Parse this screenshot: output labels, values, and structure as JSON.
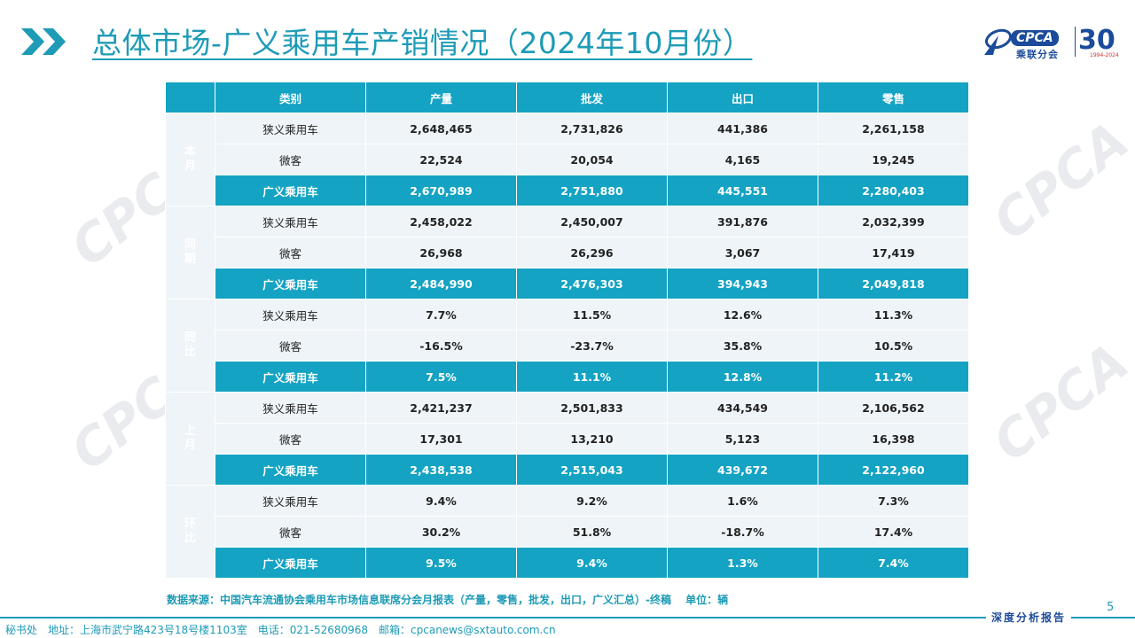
{
  "title": "总体市场-广义乘用车产销情况（2024年10月份）",
  "logo": {
    "brand": "CPCA",
    "name_cn": "乘联分会",
    "anniversary": "30",
    "years": "1994-2024"
  },
  "watermark": {
    "brand": "CPCA",
    "name_cn": "乘联分会"
  },
  "table": {
    "headers": [
      "类别",
      "产量",
      "批发",
      "出口",
      "零售"
    ],
    "groups": [
      {
        "label": "本月",
        "rows": [
          {
            "cat": "狭义乘用车",
            "values": [
              "2,648,465",
              "2,731,826",
              "441,386",
              "2,261,158"
            ]
          },
          {
            "cat": "微客",
            "values": [
              "22,524",
              "20,054",
              "4,165",
              "19,245"
            ]
          },
          {
            "cat": "广义乘用车",
            "values": [
              "2,670,989",
              "2,751,880",
              "445,551",
              "2,280,403"
            ]
          }
        ]
      },
      {
        "label": "同期",
        "rows": [
          {
            "cat": "狭义乘用车",
            "values": [
              "2,458,022",
              "2,450,007",
              "391,876",
              "2,032,399"
            ]
          },
          {
            "cat": "微客",
            "values": [
              "26,968",
              "26,296",
              "3,067",
              "17,419"
            ]
          },
          {
            "cat": "广义乘用车",
            "values": [
              "2,484,990",
              "2,476,303",
              "394,943",
              "2,049,818"
            ]
          }
        ]
      },
      {
        "label": "同比",
        "rows": [
          {
            "cat": "狭义乘用车",
            "values": [
              "7.7%",
              "11.5%",
              "12.6%",
              "11.3%"
            ]
          },
          {
            "cat": "微客",
            "values": [
              "-16.5%",
              "-23.7%",
              "35.8%",
              "10.5%"
            ]
          },
          {
            "cat": "广义乘用车",
            "values": [
              "7.5%",
              "11.1%",
              "12.8%",
              "11.2%"
            ]
          }
        ]
      },
      {
        "label": "上月",
        "rows": [
          {
            "cat": "狭义乘用车",
            "values": [
              "2,421,237",
              "2,501,833",
              "434,549",
              "2,106,562"
            ]
          },
          {
            "cat": "微客",
            "values": [
              "17,301",
              "13,210",
              "5,123",
              "16,398"
            ]
          },
          {
            "cat": "广义乘用车",
            "values": [
              "2,438,538",
              "2,515,043",
              "439,672",
              "2,122,960"
            ]
          }
        ]
      },
      {
        "label": "环比",
        "rows": [
          {
            "cat": "狭义乘用车",
            "values": [
              "9.4%",
              "9.2%",
              "1.6%",
              "7.3%"
            ]
          },
          {
            "cat": "微客",
            "values": [
              "30.2%",
              "51.8%",
              "-18.7%",
              "17.4%"
            ]
          },
          {
            "cat": "广义乘用车",
            "values": [
              "9.5%",
              "9.4%",
              "1.3%",
              "7.4%"
            ]
          }
        ]
      }
    ]
  },
  "source": "数据来源：中国汽车流通协会乘用车市场信息联席分会月报表（产量，零售，批发，出口，广义汇总）-终稿　 单位：辆",
  "page_number": "5",
  "report_label": "深度分析报告",
  "footer": "秘书处　地址：上海市武宁路423号18号楼1103室　电话：021-52680968　邮箱：cpcanews@sxtauto.com.cn",
  "colors": {
    "accent": "#14a3c3",
    "title": "#1e9bb6",
    "light_row": "#eef4f8",
    "brand_blue": "#1b4b9a"
  }
}
